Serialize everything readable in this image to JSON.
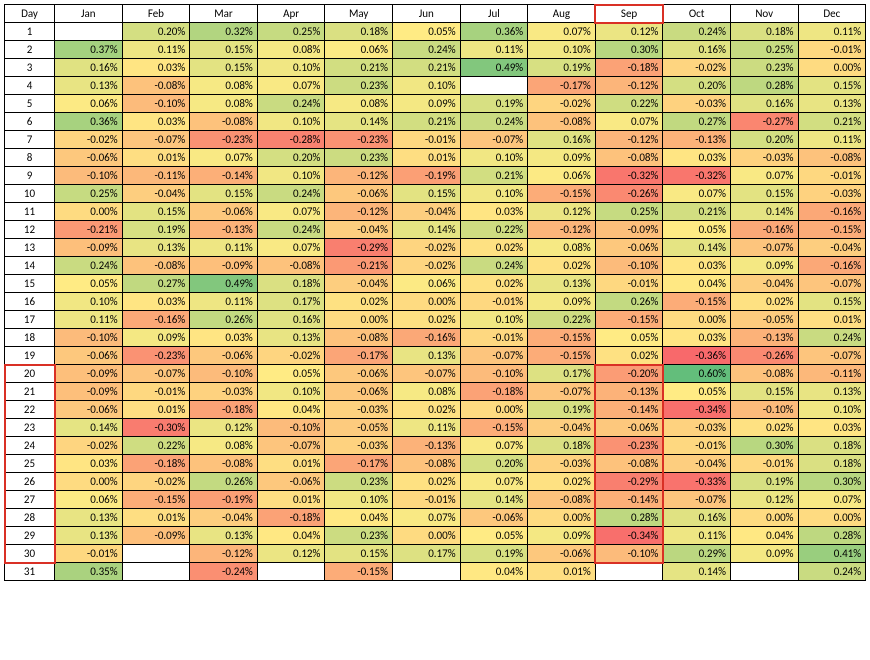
{
  "heatmap": {
    "type": "heatmap-table",
    "day_header": "Day",
    "months": [
      "Jan",
      "Feb",
      "Mar",
      "Apr",
      "May",
      "Jun",
      "Jul",
      "Aug",
      "Sep",
      "Oct",
      "Nov",
      "Dec"
    ],
    "days": [
      1,
      2,
      3,
      4,
      5,
      6,
      7,
      8,
      9,
      10,
      11,
      12,
      13,
      14,
      15,
      16,
      17,
      18,
      19,
      20,
      21,
      22,
      23,
      24,
      25,
      26,
      27,
      28,
      29,
      30,
      31
    ],
    "values": [
      [
        null,
        0.002,
        0.0032,
        0.0025,
        0.0018,
        0.0005,
        0.0036,
        0.0007,
        0.0012,
        0.0024,
        0.0018,
        0.0011
      ],
      [
        0.0037,
        0.0011,
        0.0015,
        0.0008,
        0.0006,
        0.0024,
        0.0011,
        0.001,
        0.003,
        0.0016,
        0.0025,
        -0.0001
      ],
      [
        0.0016,
        0.0003,
        0.0015,
        0.001,
        0.0021,
        0.0021,
        0.0049,
        0.0019,
        -0.0018,
        -0.0002,
        0.0023,
        0.0
      ],
      [
        0.0013,
        -0.0008,
        0.0008,
        0.0007,
        0.0023,
        0.001,
        null,
        -0.0017,
        -0.0012,
        0.002,
        0.0028,
        0.0015
      ],
      [
        0.0006,
        -0.001,
        0.0008,
        0.0024,
        0.0008,
        0.0009,
        0.0019,
        -0.0002,
        0.0022,
        -0.0003,
        0.0016,
        0.0013
      ],
      [
        0.0036,
        0.0003,
        -0.0008,
        0.001,
        0.0014,
        0.0021,
        0.0024,
        -0.0008,
        0.0007,
        0.0027,
        -0.0027,
        0.0021
      ],
      [
        -0.0002,
        -0.0007,
        -0.0023,
        -0.0028,
        -0.0023,
        -0.0001,
        -0.0007,
        0.0016,
        -0.0012,
        -0.0013,
        0.002,
        0.0011
      ],
      [
        -0.0006,
        0.0001,
        0.0007,
        0.002,
        0.0023,
        0.0001,
        0.001,
        0.0009,
        -0.0008,
        0.0003,
        -0.0003,
        -0.0008
      ],
      [
        -0.001,
        -0.0011,
        -0.0014,
        0.001,
        -0.0012,
        -0.0019,
        0.0021,
        0.0006,
        -0.0032,
        -0.0032,
        0.0007,
        -0.0001
      ],
      [
        0.0025,
        -0.0004,
        0.0015,
        0.0024,
        -0.0006,
        0.0015,
        0.001,
        -0.0015,
        -0.0026,
        0.0007,
        0.0015,
        -0.0003
      ],
      [
        0.0,
        0.0015,
        -0.0006,
        0.0007,
        -0.0012,
        -0.0004,
        0.0003,
        0.0012,
        0.0025,
        0.0021,
        0.0014,
        -0.0016
      ],
      [
        -0.0021,
        0.0019,
        -0.0013,
        0.0024,
        -0.0004,
        0.0014,
        0.0022,
        -0.0012,
        -0.0009,
        0.0005,
        -0.0016,
        -0.0015
      ],
      [
        -0.0009,
        0.0013,
        0.0011,
        0.0007,
        -0.0029,
        -0.0002,
        0.0002,
        0.0008,
        -0.0006,
        0.0014,
        -0.0007,
        -0.0004
      ],
      [
        0.0024,
        -0.0008,
        -0.0009,
        -0.0008,
        -0.0021,
        -0.0002,
        0.0024,
        0.0002,
        -0.001,
        0.0003,
        0.0009,
        -0.0016
      ],
      [
        0.0005,
        0.0027,
        0.0049,
        0.0018,
        -0.0004,
        0.0006,
        0.0002,
        0.0013,
        -0.0001,
        0.0004,
        -0.0004,
        -0.0007
      ],
      [
        0.001,
        0.0003,
        0.0011,
        0.0017,
        0.0002,
        0.0,
        -0.0001,
        0.0009,
        0.0026,
        -0.0015,
        0.0002,
        0.0015
      ],
      [
        0.0011,
        -0.0016,
        0.0026,
        0.0016,
        0.0,
        0.0002,
        0.001,
        0.0022,
        -0.0015,
        0.0,
        -0.0005,
        0.0001
      ],
      [
        -0.001,
        0.0009,
        0.0003,
        0.0013,
        -0.0008,
        -0.0016,
        -0.0001,
        -0.0015,
        0.0005,
        0.0003,
        -0.0013,
        0.0024
      ],
      [
        -0.0006,
        -0.0023,
        -0.0006,
        -0.0002,
        -0.0017,
        0.0013,
        -0.0007,
        -0.0015,
        0.0002,
        -0.0036,
        -0.0026,
        -0.0007
      ],
      [
        -0.0009,
        -0.0007,
        -0.001,
        0.0005,
        -0.0006,
        -0.0007,
        -0.001,
        0.0017,
        -0.002,
        0.006,
        -0.0008,
        -0.0011
      ],
      [
        -0.0009,
        -0.0001,
        -0.0003,
        0.001,
        -0.0006,
        0.0008,
        -0.0018,
        -0.0007,
        -0.0013,
        0.0005,
        0.0015,
        0.0013
      ],
      [
        -0.0006,
        0.0001,
        -0.0018,
        0.0004,
        -0.0003,
        0.0002,
        0.0,
        0.0019,
        -0.0014,
        -0.0034,
        -0.001,
        0.001
      ],
      [
        0.0014,
        -0.003,
        0.0012,
        -0.001,
        -0.0005,
        0.0011,
        -0.0015,
        -0.0004,
        -0.0006,
        -0.0003,
        0.0002,
        0.0003
      ],
      [
        -0.0002,
        0.0022,
        0.0008,
        -0.0007,
        -0.0003,
        -0.0013,
        0.0007,
        0.0018,
        -0.0023,
        -0.0001,
        0.003,
        0.0018
      ],
      [
        0.0003,
        -0.0018,
        -0.0008,
        0.0001,
        -0.0017,
        -0.0008,
        0.002,
        -0.0003,
        -0.0008,
        -0.0004,
        -0.0001,
        0.0018
      ],
      [
        0.0,
        -0.0002,
        0.0026,
        -0.0006,
        0.0023,
        0.0002,
        0.0007,
        0.0002,
        -0.0029,
        -0.0033,
        0.0019,
        0.003
      ],
      [
        0.0006,
        -0.0015,
        -0.0019,
        0.0001,
        0.001,
        -0.0001,
        0.0014,
        -0.0008,
        -0.0014,
        -0.0007,
        0.0012,
        0.0007
      ],
      [
        0.0013,
        0.0001,
        -0.0004,
        -0.0018,
        0.0004,
        0.0007,
        -0.0006,
        0.0,
        0.0028,
        0.0016,
        0.0,
        0.0
      ],
      [
        0.0013,
        -0.0009,
        0.0013,
        0.0004,
        0.0023,
        0.0,
        0.0005,
        0.0009,
        -0.0034,
        0.0011,
        0.0004,
        0.0028
      ],
      [
        -0.0001,
        null,
        -0.0012,
        0.0012,
        0.0015,
        0.0017,
        0.0019,
        -0.0006,
        -0.001,
        0.0029,
        0.0009,
        0.0041
      ],
      [
        0.0035,
        null,
        -0.0024,
        null,
        -0.0015,
        null,
        0.0004,
        0.0001,
        null,
        0.0014,
        null,
        0.0024
      ]
    ],
    "color_scale": {
      "min": -0.0036,
      "mid": 0.0005,
      "max": 0.006,
      "min_color": "#f8696b",
      "mid_color": "#ffeb84",
      "max_color": "#63be7b"
    },
    "background_color": "#ffffff",
    "border_color": "#000000",
    "font_size": 11,
    "highlights": [
      {
        "name": "sep-header",
        "row_start": -1,
        "row_end": -1,
        "col_start": 8,
        "col_end": 8
      },
      {
        "name": "day-20-30",
        "row_start": 19,
        "row_end": 29,
        "col_start": -1,
        "col_end": -1
      },
      {
        "name": "sep-20-30",
        "row_start": 19,
        "row_end": 29,
        "col_start": 8,
        "col_end": 8
      }
    ]
  }
}
